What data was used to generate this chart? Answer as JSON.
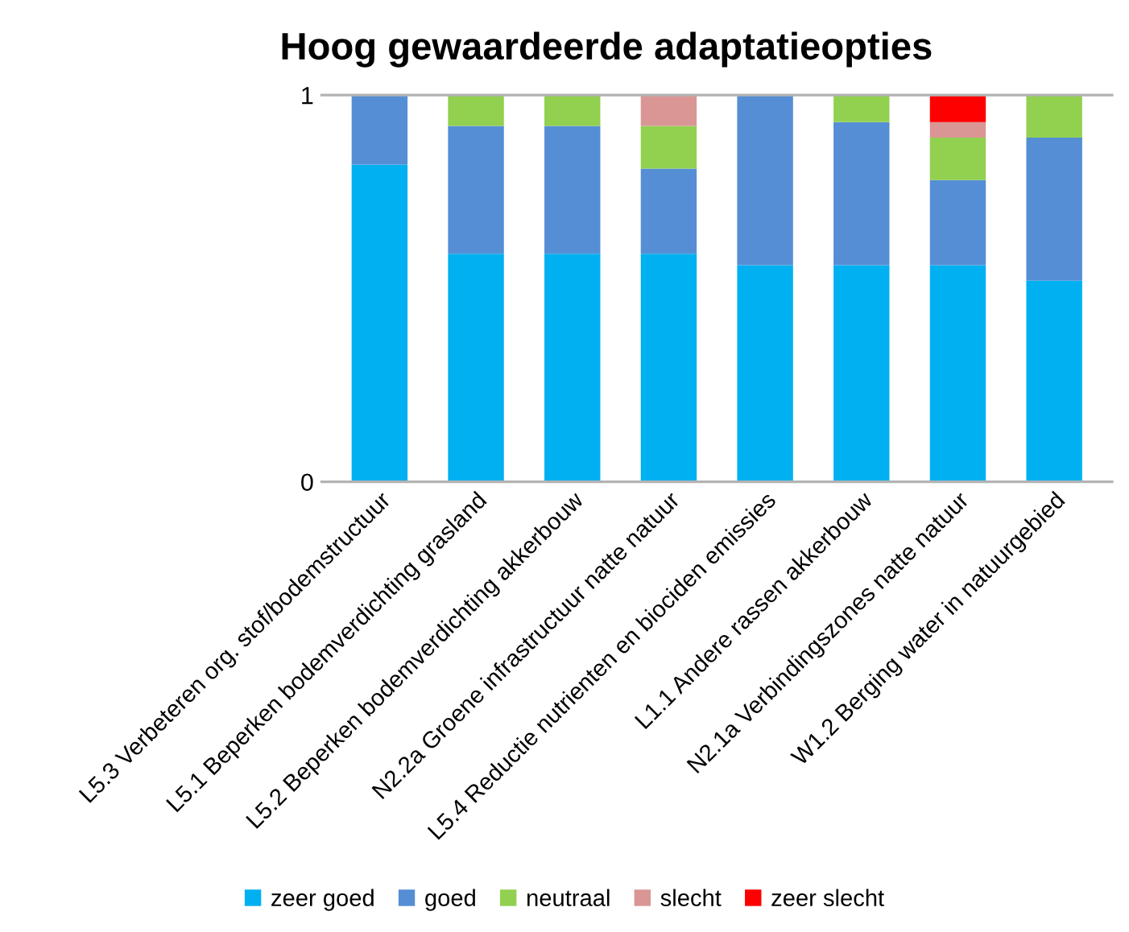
{
  "chart_data": {
    "type": "bar",
    "title": "Hoog gewaardeerde adaptatieopties",
    "stacked": true,
    "categories": [
      "L5.3 Verbeteren org. stof/bodemstructuur",
      "L5.1 Beperken bodemverdichting grasland",
      "L5.2 Beperken bodemverdichting akkerbouw",
      "N2.2a Groene infrastructuur natte natuur",
      "L5.4 Reductie nutrienten en biociden emissies",
      "L1.1 Andere rassen akkerbouw",
      "N2.1a Verbindingszones natte natuur",
      "W1.2 Berging water in natuurgebied"
    ],
    "series": [
      {
        "name": "zeer goed",
        "color": "#00b0f0",
        "values": [
          0.82,
          0.59,
          0.59,
          0.59,
          0.56,
          0.56,
          0.56,
          0.52
        ]
      },
      {
        "name": "goed",
        "color": "#558ed5",
        "values": [
          0.18,
          0.33,
          0.33,
          0.22,
          0.44,
          0.37,
          0.22,
          0.37
        ]
      },
      {
        "name": "neutraal",
        "color": "#92d050",
        "values": [
          0,
          0.08,
          0.08,
          0.11,
          0,
          0.07,
          0.11,
          0.11
        ]
      },
      {
        "name": "slecht",
        "color": "#d99694",
        "values": [
          0,
          0,
          0,
          0.08,
          0,
          0,
          0.04,
          0
        ]
      },
      {
        "name": "zeer slecht",
        "color": "#ff0000",
        "values": [
          0,
          0,
          0,
          0,
          0,
          0,
          0.07,
          0
        ]
      }
    ],
    "ylim": [
      0,
      1
    ],
    "yticks": [
      0,
      1
    ],
    "legend": "bottom"
  }
}
